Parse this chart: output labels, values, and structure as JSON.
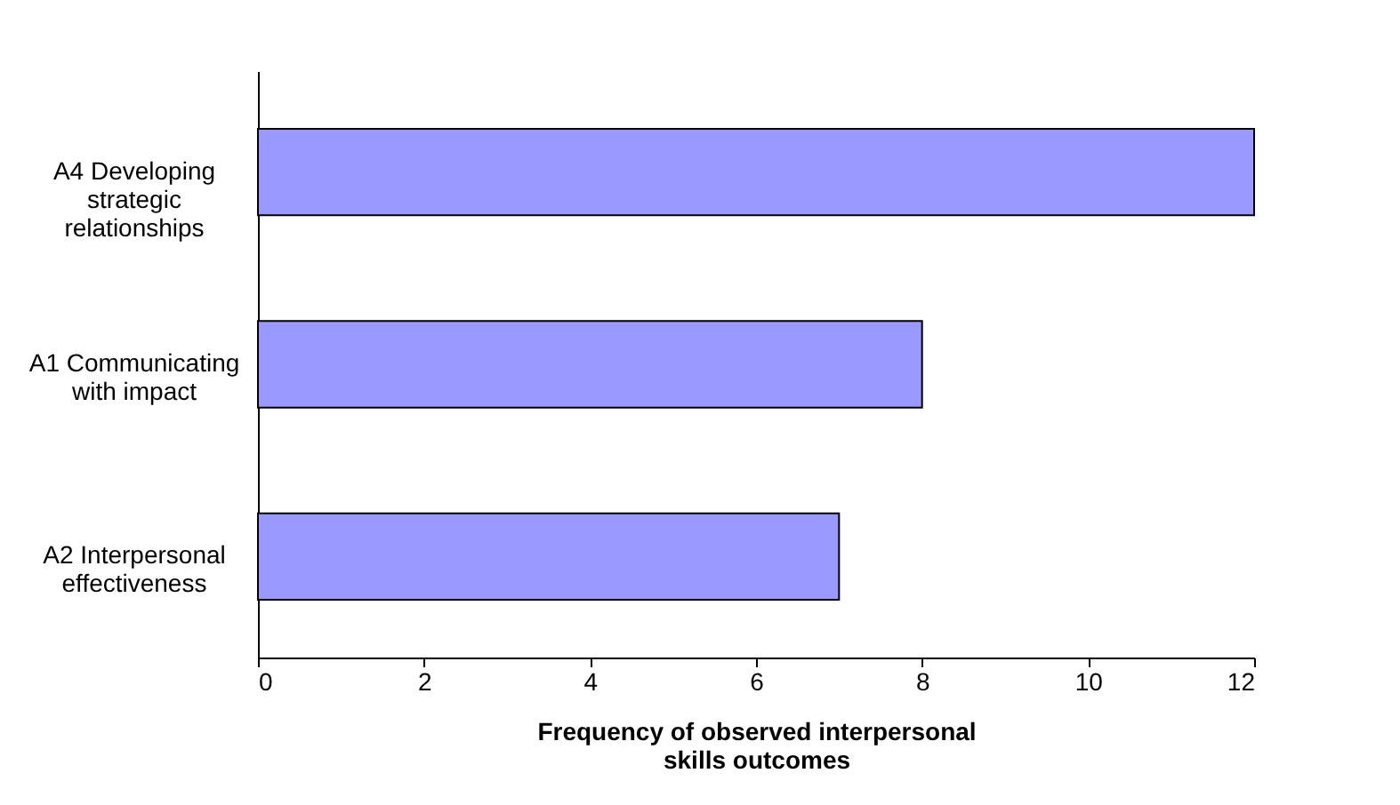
{
  "chart_data": {
    "type": "bar",
    "orientation": "horizontal",
    "xlabel": "Frequency of observed interpersonal skills outcomes",
    "categories": [
      "A4 Developing strategic relationships",
      "A1 Communicating with impact",
      "A2 Interpersonal effectiveness"
    ],
    "values": [
      12,
      8,
      7
    ],
    "color": "#9999ff",
    "xlim": [
      0,
      12
    ],
    "xticks": [
      0,
      2,
      4,
      6,
      8,
      10,
      12
    ]
  }
}
